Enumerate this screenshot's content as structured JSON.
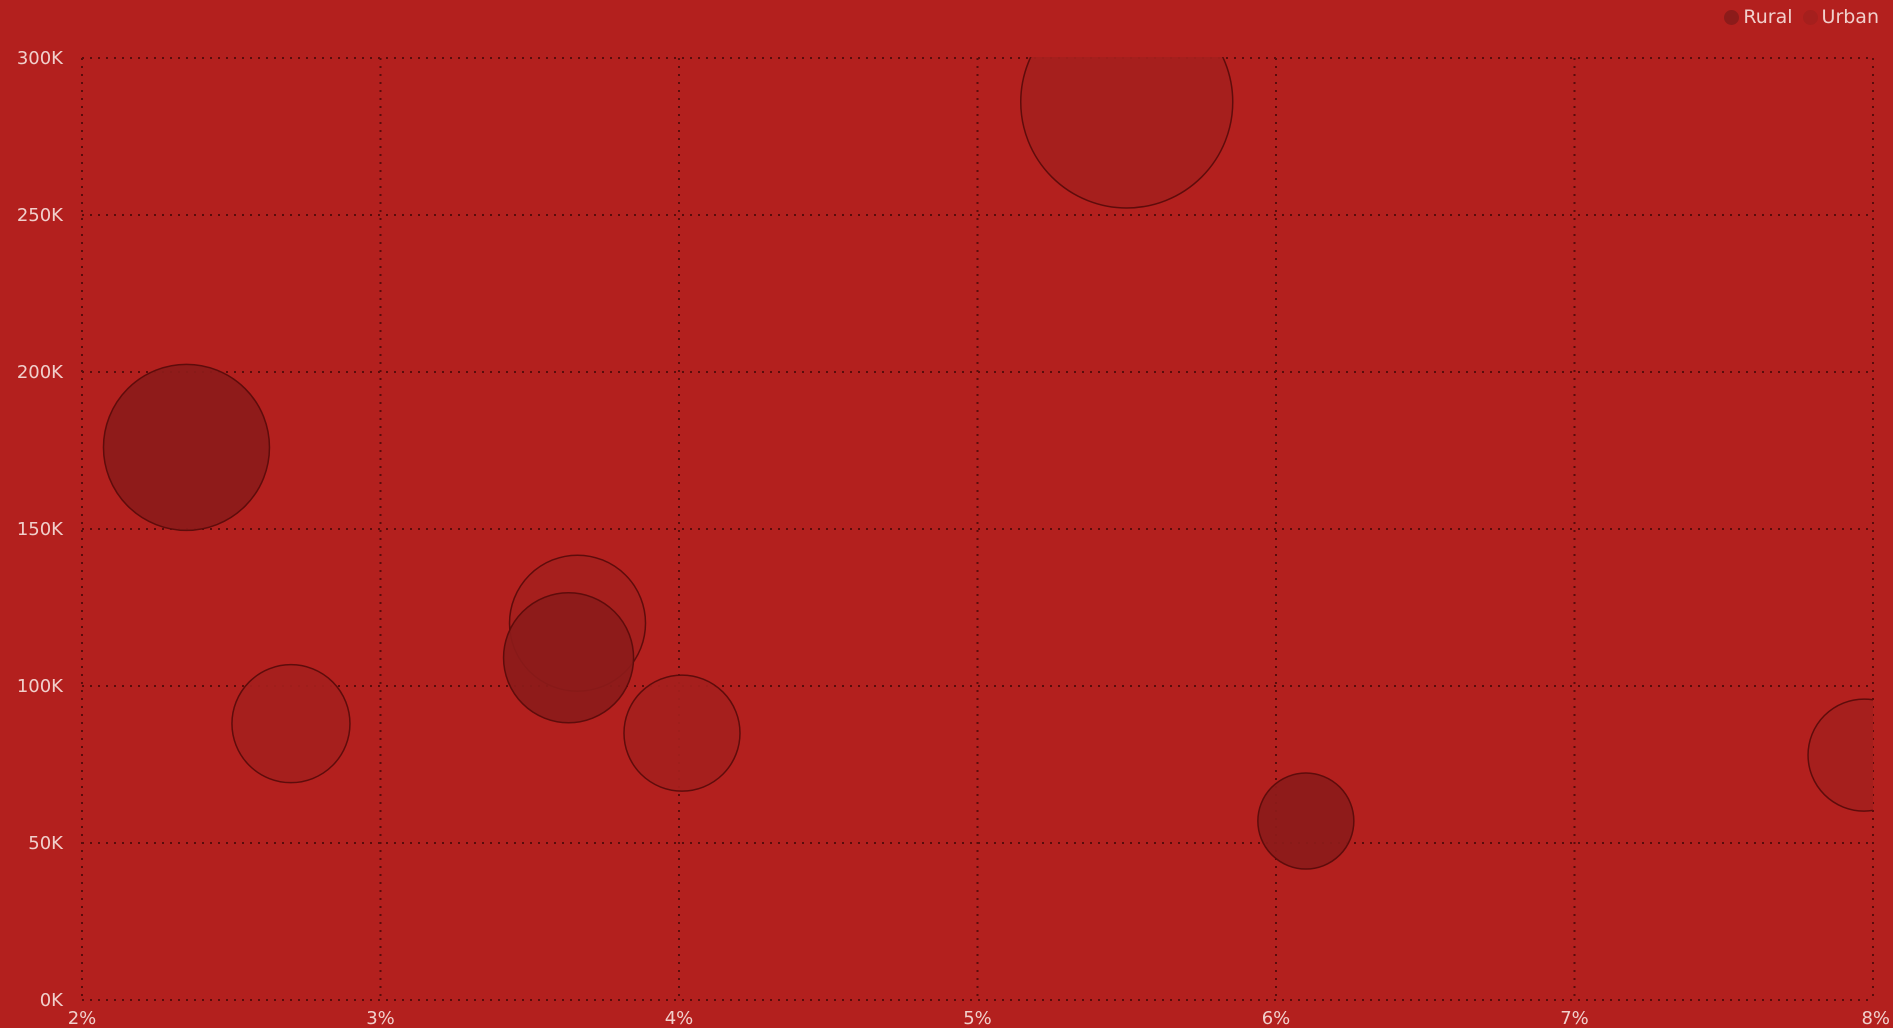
{
  "colors": {
    "background": "#b3201e",
    "grid": "#5a0d0c",
    "tick_text": "#f1d0cc",
    "rural_fill": "#8c1b1a",
    "urban_fill": "#a51f1d",
    "bubble_stroke": "#5e0c0b"
  },
  "chart_data": {
    "type": "scatter",
    "variant": "bubble",
    "title": "",
    "xlabel": "",
    "ylabel": "",
    "grid": true,
    "grid_style": "dotted",
    "legend_position": "top-right",
    "xlim": [
      2,
      8
    ],
    "ylim": [
      0,
      300000
    ],
    "x_ticks": [
      2,
      3,
      4,
      5,
      6,
      7,
      8
    ],
    "x_tick_labels": [
      "2%",
      "3%",
      "4%",
      "5%",
      "6%",
      "7%",
      "8%"
    ],
    "y_ticks": [
      0,
      50000,
      100000,
      150000,
      200000,
      250000,
      300000
    ],
    "y_tick_labels": [
      "0K",
      "50K",
      "100K",
      "150K",
      "200K",
      "250K",
      "300K"
    ],
    "series": [
      {
        "name": "Rural",
        "color": "#8c1b1a",
        "points": [
          {
            "x": 2.35,
            "y": 176000,
            "size": 83
          },
          {
            "x": 3.63,
            "y": 109000,
            "size": 65
          },
          {
            "x": 6.1,
            "y": 57000,
            "size": 48
          }
        ]
      },
      {
        "name": "Urban",
        "color": "#a51f1d",
        "points": [
          {
            "x": 5.5,
            "y": 286000,
            "size": 106
          },
          {
            "x": 2.7,
            "y": 88000,
            "size": 59
          },
          {
            "x": 3.66,
            "y": 120000,
            "size": 68
          },
          {
            "x": 4.01,
            "y": 85000,
            "size": 58
          },
          {
            "x": 7.97,
            "y": 78000,
            "size": 56
          }
        ]
      }
    ]
  }
}
